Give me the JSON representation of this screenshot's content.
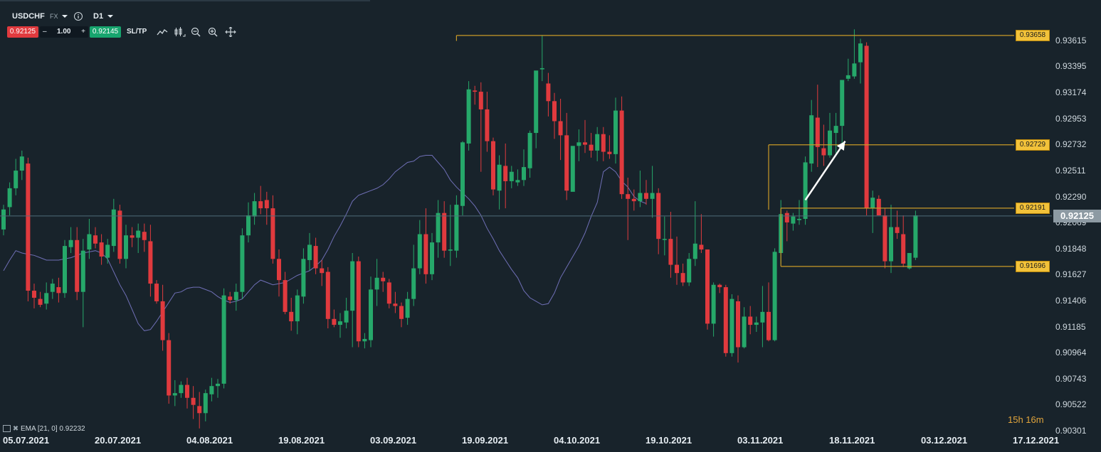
{
  "header": {
    "symbol": "USDCHF",
    "market": "FX",
    "timeframe": "D1",
    "bid": "0.92125",
    "minus": "–",
    "quantity": "1.00",
    "plus": "+",
    "ask": "0.92145",
    "sltp": "SL/TP"
  },
  "colors": {
    "background": "#18232b",
    "bull": "#26a86a",
    "bear": "#e03a3e",
    "ema": "#6f6fb6",
    "level": "#c99a27",
    "level_label_bg": "#f2c23a"
  },
  "icons": [
    "dropdown-caret-icon",
    "info-icon",
    "line-chart-icon",
    "candles-icon",
    "zoom-out-icon",
    "zoom-in-icon",
    "crosshair-icon"
  ],
  "indicator_label": "EMA [21, 0] 0.92232",
  "countdown": "15h 16m",
  "current_price_label": "0.92125",
  "chart_data": {
    "type": "candlestick",
    "title": "",
    "y_ticks": [
      "0.93615",
      "0.93395",
      "0.93174",
      "0.92953",
      "0.92732",
      "0.92511",
      "0.92290",
      "0.92069",
      "0.91848",
      "0.91627",
      "0.91406",
      "0.91185",
      "0.90964",
      "0.90743",
      "0.90522",
      "0.90301"
    ],
    "ylim": [
      0.9023,
      0.9378
    ],
    "x_ticks": [
      "05.07.2021",
      "20.07.2021",
      "04.08.2021",
      "19.08.2021",
      "03.09.2021",
      "19.09.2021",
      "04.10.2021",
      "19.10.2021",
      "03.11.2021",
      "18.11.2021",
      "03.12.2021",
      "17.12.2021"
    ],
    "current_price": 0.92125,
    "levels": [
      {
        "value": 0.93658,
        "label": "0.93658",
        "from_bar": 74
      },
      {
        "value": 0.92729,
        "label": "0.92729",
        "from_bar": 125
      },
      {
        "value": 0.92191,
        "label": "0.92191",
        "from_bar": 127
      },
      {
        "value": 0.91696,
        "label": "0.91696",
        "from_bar": 127
      }
    ],
    "annotation": {
      "type": "arrow",
      "from": [
        131,
        0.9226
      ],
      "to": [
        137.5,
        0.9276
      ]
    },
    "candles_ohlc": [
      [
        0.9201,
        0.9222,
        0.9196,
        0.9218
      ],
      [
        0.922,
        0.9241,
        0.9213,
        0.9236
      ],
      [
        0.9236,
        0.9261,
        0.923,
        0.9251
      ],
      [
        0.9251,
        0.9268,
        0.9243,
        0.9263
      ],
      [
        0.9257,
        0.9262,
        0.914,
        0.9149
      ],
      [
        0.9149,
        0.9155,
        0.9134,
        0.9143
      ],
      [
        0.9142,
        0.9148,
        0.9135,
        0.9137
      ],
      [
        0.9138,
        0.9156,
        0.9133,
        0.9147
      ],
      [
        0.9148,
        0.9159,
        0.9142,
        0.9155
      ],
      [
        0.9152,
        0.916,
        0.9139,
        0.9147
      ],
      [
        0.9147,
        0.9192,
        0.9143,
        0.9187
      ],
      [
        0.9186,
        0.9203,
        0.9181,
        0.9192
      ],
      [
        0.9192,
        0.9203,
        0.9141,
        0.9148
      ],
      [
        0.9148,
        0.9193,
        0.9118,
        0.9183
      ],
      [
        0.9184,
        0.921,
        0.9176,
        0.9197
      ],
      [
        0.9196,
        0.9203,
        0.9185,
        0.9189
      ],
      [
        0.919,
        0.9197,
        0.9171,
        0.9178
      ],
      [
        0.9177,
        0.9193,
        0.9172,
        0.9188
      ],
      [
        0.9187,
        0.9227,
        0.9182,
        0.9218
      ],
      [
        0.9217,
        0.9222,
        0.9172,
        0.9176
      ],
      [
        0.9176,
        0.9205,
        0.9168,
        0.9196
      ],
      [
        0.9196,
        0.9203,
        0.9186,
        0.9194
      ],
      [
        0.9194,
        0.9206,
        0.9181,
        0.92
      ],
      [
        0.9199,
        0.9206,
        0.9182,
        0.9192
      ],
      [
        0.9191,
        0.9205,
        0.9144,
        0.9155
      ],
      [
        0.9155,
        0.9158,
        0.9138,
        0.914
      ],
      [
        0.914,
        0.9154,
        0.9098,
        0.9107
      ],
      [
        0.9107,
        0.9113,
        0.9053,
        0.906
      ],
      [
        0.906,
        0.9073,
        0.9051,
        0.9062
      ],
      [
        0.9062,
        0.9072,
        0.9058,
        0.9069
      ],
      [
        0.9069,
        0.9075,
        0.9049,
        0.9058
      ],
      [
        0.9058,
        0.9068,
        0.904,
        0.9052
      ],
      [
        0.9051,
        0.9063,
        0.9032,
        0.9045
      ],
      [
        0.9045,
        0.9065,
        0.9038,
        0.9062
      ],
      [
        0.9061,
        0.9075,
        0.9055,
        0.9068
      ],
      [
        0.9068,
        0.9074,
        0.9058,
        0.907
      ],
      [
        0.907,
        0.9151,
        0.9066,
        0.9145
      ],
      [
        0.9144,
        0.9148,
        0.9138,
        0.9141
      ],
      [
        0.9141,
        0.9155,
        0.9132,
        0.9148
      ],
      [
        0.9148,
        0.9202,
        0.9142,
        0.9196
      ],
      [
        0.9196,
        0.9224,
        0.919,
        0.9213
      ],
      [
        0.9212,
        0.9232,
        0.9205,
        0.9225
      ],
      [
        0.9225,
        0.9238,
        0.9214,
        0.9219
      ],
      [
        0.9226,
        0.9233,
        0.9205,
        0.9219
      ],
      [
        0.9219,
        0.923,
        0.9172,
        0.9176
      ],
      [
        0.9176,
        0.9184,
        0.9144,
        0.9158
      ],
      [
        0.9158,
        0.9165,
        0.9129,
        0.9131
      ],
      [
        0.9131,
        0.9143,
        0.9115,
        0.9123
      ],
      [
        0.9123,
        0.915,
        0.9112,
        0.9145
      ],
      [
        0.9144,
        0.9185,
        0.9138,
        0.9176
      ],
      [
        0.9175,
        0.9198,
        0.9166,
        0.9188
      ],
      [
        0.9187,
        0.9194,
        0.9163,
        0.9168
      ],
      [
        0.9168,
        0.9175,
        0.9153,
        0.9164
      ],
      [
        0.9165,
        0.9169,
        0.9117,
        0.9125
      ],
      [
        0.9125,
        0.9133,
        0.9118,
        0.912
      ],
      [
        0.912,
        0.913,
        0.9109,
        0.9123
      ],
      [
        0.9122,
        0.9143,
        0.9117,
        0.9132
      ],
      [
        0.9132,
        0.9181,
        0.9101,
        0.9174
      ],
      [
        0.9174,
        0.9178,
        0.9101,
        0.9106
      ],
      [
        0.9106,
        0.9113,
        0.91,
        0.9108
      ],
      [
        0.9107,
        0.9161,
        0.9101,
        0.915
      ],
      [
        0.915,
        0.9176,
        0.9136,
        0.916
      ],
      [
        0.916,
        0.9165,
        0.9148,
        0.9157
      ],
      [
        0.9156,
        0.9159,
        0.9134,
        0.9138
      ],
      [
        0.9138,
        0.9148,
        0.913,
        0.9136
      ],
      [
        0.9136,
        0.9139,
        0.9118,
        0.9125
      ],
      [
        0.9126,
        0.9148,
        0.912,
        0.9142
      ],
      [
        0.9142,
        0.9188,
        0.9136,
        0.9168
      ],
      [
        0.9168,
        0.9209,
        0.9163,
        0.9197
      ],
      [
        0.9197,
        0.9219,
        0.9155,
        0.9163
      ],
      [
        0.9163,
        0.9198,
        0.9158,
        0.919
      ],
      [
        0.919,
        0.9226,
        0.9177,
        0.9215
      ],
      [
        0.9215,
        0.9225,
        0.9177,
        0.9183
      ],
      [
        0.9183,
        0.9222,
        0.917,
        0.9184
      ],
      [
        0.9183,
        0.923,
        0.9177,
        0.9222
      ],
      [
        0.9221,
        0.9276,
        0.9213,
        0.9275
      ],
      [
        0.9274,
        0.9327,
        0.9268,
        0.932
      ],
      [
        0.9319,
        0.9323,
        0.9307,
        0.9318
      ],
      [
        0.9318,
        0.9326,
        0.925,
        0.9303
      ],
      [
        0.9303,
        0.9318,
        0.9267,
        0.9276
      ],
      [
        0.9276,
        0.9279,
        0.923,
        0.9235
      ],
      [
        0.9234,
        0.9264,
        0.9218,
        0.9256
      ],
      [
        0.9255,
        0.9274,
        0.9219,
        0.9242
      ],
      [
        0.9242,
        0.9255,
        0.9236,
        0.925
      ],
      [
        0.9241,
        0.9252,
        0.9238,
        0.9243
      ],
      [
        0.9243,
        0.9269,
        0.9238,
        0.9254
      ],
      [
        0.9253,
        0.9285,
        0.9245,
        0.9283
      ],
      [
        0.9283,
        0.9321,
        0.927,
        0.9336
      ],
      [
        0.9337,
        0.9366,
        0.9327,
        0.9338
      ],
      [
        0.9325,
        0.9334,
        0.9297,
        0.931
      ],
      [
        0.931,
        0.9317,
        0.9278,
        0.9293
      ],
      [
        0.9293,
        0.9312,
        0.926,
        0.9281
      ],
      [
        0.9281,
        0.93,
        0.9226,
        0.9234
      ],
      [
        0.9233,
        0.9258,
        0.9235,
        0.9272
      ],
      [
        0.9272,
        0.9286,
        0.9259,
        0.9275
      ],
      [
        0.9275,
        0.9294,
        0.9266,
        0.9273
      ],
      [
        0.9273,
        0.9283,
        0.9262,
        0.9268
      ],
      [
        0.9268,
        0.9288,
        0.9259,
        0.9282
      ],
      [
        0.9282,
        0.9288,
        0.9259,
        0.9267
      ],
      [
        0.9267,
        0.9281,
        0.9261,
        0.9265
      ],
      [
        0.9265,
        0.9313,
        0.9257,
        0.9302
      ],
      [
        0.9302,
        0.9314,
        0.9227,
        0.9231
      ],
      [
        0.9231,
        0.9245,
        0.9192,
        0.9227
      ],
      [
        0.9227,
        0.9235,
        0.9217,
        0.9225
      ],
      [
        0.9225,
        0.9251,
        0.922,
        0.9232
      ],
      [
        0.9232,
        0.9243,
        0.9222,
        0.9227
      ],
      [
        0.9227,
        0.9255,
        0.9211,
        0.9232
      ],
      [
        0.9232,
        0.9236,
        0.918,
        0.9193
      ],
      [
        0.9193,
        0.9212,
        0.9179,
        0.9193
      ],
      [
        0.9193,
        0.9216,
        0.916,
        0.9171
      ],
      [
        0.9171,
        0.9195,
        0.9154,
        0.9164
      ],
      [
        0.9164,
        0.9172,
        0.9153,
        0.9156
      ],
      [
        0.9156,
        0.9181,
        0.9153,
        0.9176
      ],
      [
        0.9176,
        0.9225,
        0.917,
        0.9189
      ],
      [
        0.9188,
        0.9214,
        0.9181,
        0.9184
      ],
      [
        0.9184,
        0.9184,
        0.9116,
        0.9121
      ],
      [
        0.9121,
        0.9156,
        0.911,
        0.9154
      ],
      [
        0.9154,
        0.9155,
        0.9147,
        0.9152
      ],
      [
        0.9152,
        0.9154,
        0.9093,
        0.9096
      ],
      [
        0.9096,
        0.9146,
        0.9093,
        0.9142
      ],
      [
        0.914,
        0.9145,
        0.9088,
        0.9101
      ],
      [
        0.9101,
        0.9135,
        0.91,
        0.9127
      ],
      [
        0.9127,
        0.9136,
        0.9112,
        0.912
      ],
      [
        0.912,
        0.9127,
        0.9114,
        0.9122
      ],
      [
        0.9122,
        0.9153,
        0.9101,
        0.9131
      ],
      [
        0.9131,
        0.9156,
        0.9106,
        0.9107
      ],
      [
        0.9107,
        0.9185,
        0.9106,
        0.9182
      ],
      [
        0.9181,
        0.9226,
        0.9172,
        0.9214
      ],
      [
        0.9215,
        0.9217,
        0.9191,
        0.9207
      ],
      [
        0.9206,
        0.9215,
        0.92,
        0.9212
      ],
      [
        0.9209,
        0.9226,
        0.9205,
        0.921
      ],
      [
        0.921,
        0.9263,
        0.9205,
        0.9258
      ],
      [
        0.9257,
        0.9311,
        0.925,
        0.9298
      ],
      [
        0.9296,
        0.9324,
        0.9254,
        0.9271
      ],
      [
        0.927,
        0.929,
        0.9255,
        0.9264
      ],
      [
        0.9264,
        0.93,
        0.9262,
        0.9285
      ],
      [
        0.9283,
        0.93,
        0.9266,
        0.9289
      ],
      [
        0.9289,
        0.9327,
        0.9274,
        0.9328
      ],
      [
        0.9329,
        0.9346,
        0.9327,
        0.9332
      ],
      [
        0.9331,
        0.9371,
        0.9329,
        0.9342
      ],
      [
        0.9343,
        0.9363,
        0.9325,
        0.9359
      ],
      [
        0.9357,
        0.936,
        0.9213,
        0.9219
      ],
      [
        0.9219,
        0.9234,
        0.9198,
        0.9228
      ],
      [
        0.9227,
        0.923,
        0.9213,
        0.9213
      ],
      [
        0.9213,
        0.9219,
        0.9168,
        0.9174
      ],
      [
        0.9174,
        0.9222,
        0.9164,
        0.9203
      ],
      [
        0.9203,
        0.9217,
        0.9193,
        0.9198
      ],
      [
        0.9197,
        0.9213,
        0.9169,
        0.9172
      ],
      [
        0.9168,
        0.918,
        0.9167,
        0.9181
      ],
      [
        0.9177,
        0.9217,
        0.9175,
        0.9213
      ]
    ],
    "ema_21": [
      0.9166,
      0.9175,
      0.9183,
      0.9181,
      0.918,
      0.9179,
      0.9177,
      0.9175,
      0.9175,
      0.9175,
      0.9176,
      0.9177,
      0.9179,
      0.9181,
      0.9182,
      0.9183,
      0.9181,
      0.9176,
      0.9165,
      0.9154,
      0.9145,
      0.9133,
      0.9121,
      0.9115,
      0.9116,
      0.9123,
      0.9131,
      0.9139,
      0.9147,
      0.9148,
      0.9151,
      0.9152,
      0.9152,
      0.915,
      0.9148,
      0.9144,
      0.9141,
      0.9139,
      0.914,
      0.9142,
      0.9148,
      0.9154,
      0.9158,
      0.9156,
      0.9154,
      0.9155,
      0.9156,
      0.9159,
      0.9162,
      0.9164,
      0.9166,
      0.917,
      0.9175,
      0.9184,
      0.9195,
      0.9204,
      0.9214,
      0.9225,
      0.923,
      0.9232,
      0.9234,
      0.9236,
      0.9239,
      0.9244,
      0.925,
      0.9254,
      0.9258,
      0.9259,
      0.9263,
      0.9264,
      0.9264,
      0.9258,
      0.9252,
      0.9243,
      0.9237,
      0.9232,
      0.9227,
      0.9221,
      0.9213,
      0.9202,
      0.9193,
      0.9183,
      0.9175,
      0.9167,
      0.916,
      0.9149,
      0.9143,
      0.914,
      0.9137,
      0.9138,
      0.9147,
      0.916,
      0.9169,
      0.9178,
      0.9187,
      0.9198,
      0.9212,
      0.9224,
      0.925,
      0.9254,
      0.925,
      0.9242,
      0.9237,
      0.9229,
      0.9225,
      0.9223
    ]
  }
}
